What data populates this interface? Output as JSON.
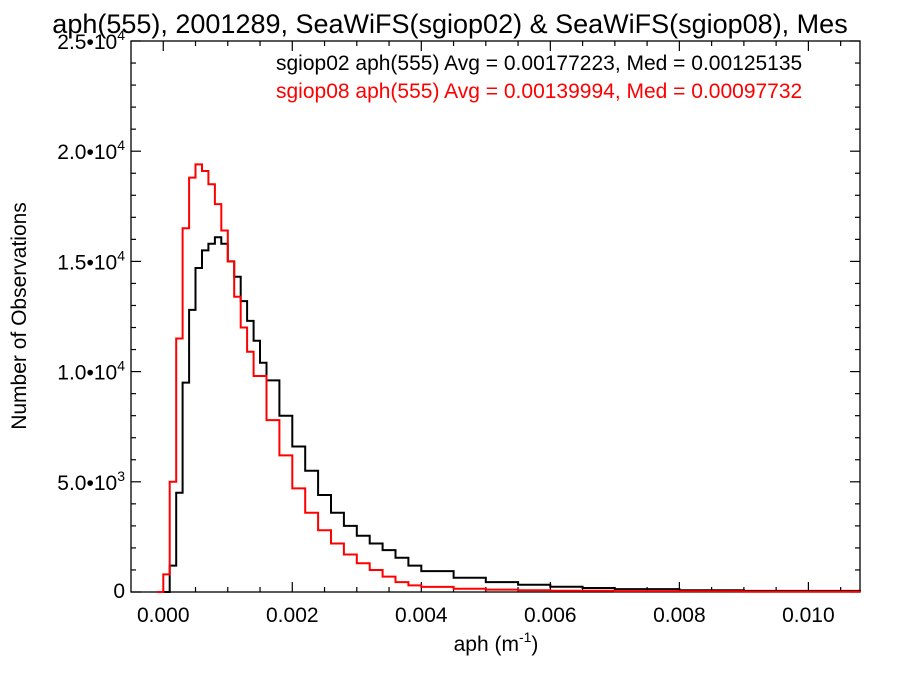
{
  "chart_data": {
    "type": "line",
    "title": "aph(555), 2001289, SeaWiFS(sgiop02) & SeaWiFS(sgiop08), Mes",
    "xlabel": "aph (m",
    "xlabel_sup": "-1",
    "xlabel_close": ")",
    "ylabel": "Number of Observations",
    "xlim": [
      -0.0005,
      0.0108
    ],
    "ylim": [
      0,
      25000
    ],
    "x_ticks": [
      0.0,
      0.002,
      0.004,
      0.006,
      0.008,
      0.01
    ],
    "x_tick_labels": [
      "0.000",
      "0.002",
      "0.004",
      "0.006",
      "0.008",
      "0.010"
    ],
    "y_ticks": [
      0,
      5000,
      10000,
      15000,
      20000,
      25000
    ],
    "y_tick_labels": [
      {
        "mant": "0",
        "sup": ""
      },
      {
        "mant": "5.0•10",
        "sup": "3"
      },
      {
        "mant": "1.0•10",
        "sup": "4"
      },
      {
        "mant": "1.5•10",
        "sup": "4"
      },
      {
        "mant": "2.0•10",
        "sup": "4"
      },
      {
        "mant": "2.5•10",
        "sup": "4"
      }
    ],
    "annotations": [
      {
        "text": "sgiop02 aph(555) Avg = 0.00177223, Med = 0.00125135",
        "color": "#000000"
      },
      {
        "text": "sgiop08 aph(555) Avg = 0.00139994, Med = 0.00097732",
        "color": "#ff0000"
      }
    ],
    "series": [
      {
        "color": "#000000",
        "x": [
          0.0,
          0.0001,
          0.0002,
          0.0003,
          0.0004,
          0.0005,
          0.0006,
          0.0007,
          0.0008,
          0.0009,
          0.001,
          0.0011,
          0.0012,
          0.0013,
          0.0014,
          0.0015,
          0.0016,
          0.0018,
          0.002,
          0.0022,
          0.0024,
          0.0026,
          0.0028,
          0.003,
          0.0032,
          0.0034,
          0.0036,
          0.0038,
          0.004,
          0.0045,
          0.005,
          0.0055,
          0.006,
          0.0065,
          0.007,
          0.008,
          0.009,
          0.0108
        ],
        "y": [
          0,
          1200,
          4500,
          9500,
          12800,
          14700,
          15500,
          15800,
          16100,
          15800,
          15000,
          14300,
          13200,
          12300,
          11400,
          10400,
          9600,
          8000,
          6600,
          5500,
          4400,
          3600,
          3000,
          2550,
          2200,
          1900,
          1550,
          1200,
          950,
          650,
          450,
          330,
          240,
          180,
          130,
          80,
          50,
          20
        ]
      },
      {
        "color": "#ff0000",
        "x": [
          -0.0001,
          0.0,
          0.0001,
          0.0002,
          0.0003,
          0.0004,
          0.0005,
          0.0006,
          0.0007,
          0.0008,
          0.0009,
          0.001,
          0.0011,
          0.0012,
          0.0013,
          0.0014,
          0.0016,
          0.0018,
          0.002,
          0.0022,
          0.0024,
          0.0026,
          0.0028,
          0.003,
          0.0032,
          0.0034,
          0.0036,
          0.0038,
          0.004,
          0.0045,
          0.005,
          0.0055,
          0.006,
          0.007,
          0.008,
          0.009,
          0.0108
        ],
        "y": [
          0,
          800,
          5000,
          11500,
          16500,
          18800,
          19400,
          19100,
          18500,
          17600,
          16400,
          15000,
          13400,
          12000,
          10900,
          9800,
          7800,
          6200,
          4700,
          3600,
          2800,
          2200,
          1700,
          1300,
          1000,
          700,
          450,
          300,
          230,
          150,
          110,
          80,
          60,
          40,
          30,
          20,
          10
        ]
      }
    ]
  }
}
